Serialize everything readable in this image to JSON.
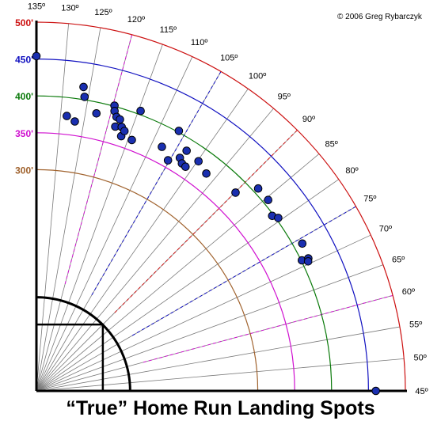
{
  "chart_data": {
    "type": "scatter",
    "title": "“True” Home Run Landing Spots",
    "credit": "© 2006 Greg Rybarczyk",
    "coordinate_system": "polar",
    "radius_unit": "ft",
    "distance_rings": [
      {
        "label": "300'",
        "value": 300,
        "color": "#a0622d"
      },
      {
        "label": "350'",
        "value": 350,
        "color": "#d010d0"
      },
      {
        "label": "400'",
        "value": 400,
        "color": "#0b7a0b"
      },
      {
        "label": "450'",
        "value": 450,
        "color": "#1010c0"
      },
      {
        "label": "500'",
        "value": 500,
        "color": "#cc1010"
      }
    ],
    "angle_ticks": [
      {
        "label": "135º",
        "value": 135
      },
      {
        "label": "130º",
        "value": 130
      },
      {
        "label": "125º",
        "value": 125
      },
      {
        "label": "120º",
        "value": 120
      },
      {
        "label": "115º",
        "value": 115
      },
      {
        "label": "110º",
        "value": 110
      },
      {
        "label": "105º",
        "value": 105
      },
      {
        "label": "100º",
        "value": 100
      },
      {
        "label": "95º",
        "value": 95
      },
      {
        "label": "90º",
        "value": 90
      },
      {
        "label": "85º",
        "value": 85
      },
      {
        "label": "80º",
        "value": 80
      },
      {
        "label": "75º",
        "value": 75
      },
      {
        "label": "70º",
        "value": 70
      },
      {
        "label": "65º",
        "value": 65
      },
      {
        "label": "60º",
        "value": 60
      },
      {
        "label": "55º",
        "value": 55
      },
      {
        "label": "50º",
        "value": 50
      },
      {
        "label": "45º",
        "value": 45
      }
    ],
    "dashed_angles": [
      {
        "value": 120,
        "color": "#d010d0"
      },
      {
        "value": 105,
        "color": "#1010c0"
      },
      {
        "value": 90,
        "color": "#cc1010"
      },
      {
        "value": 75,
        "color": "#1010c0"
      },
      {
        "value": 60,
        "color": "#d010d0"
      }
    ],
    "points": [
      {
        "distance": 454,
        "angle": 135.0
      },
      {
        "distance": 460,
        "angle": 45.0
      },
      {
        "distance": 375,
        "angle": 128.7
      },
      {
        "distance": 369,
        "angle": 126.9
      },
      {
        "distance": 417,
        "angle": 126.2
      },
      {
        "distance": 404,
        "angle": 125.7
      },
      {
        "distance": 385,
        "angle": 122.8
      },
      {
        "distance": 401,
        "angle": 119.7
      },
      {
        "distance": 394,
        "angle": 119.4
      },
      {
        "distance": 387,
        "angle": 118.7
      },
      {
        "distance": 374,
        "angle": 118.4
      },
      {
        "distance": 385,
        "angle": 117.9
      },
      {
        "distance": 376,
        "angle": 117.1
      },
      {
        "distance": 364,
        "angle": 116.6
      },
      {
        "distance": 372,
        "angle": 116.3
      },
      {
        "distance": 364,
        "angle": 114.2
      },
      {
        "distance": 405,
        "angle": 114.6
      },
      {
        "distance": 372,
        "angle": 107.8
      },
      {
        "distance": 402,
        "angle": 106.3
      },
      {
        "distance": 360,
        "angle": 105.3
      },
      {
        "distance": 371,
        "angle": 103.4
      },
      {
        "distance": 384,
        "angle": 103.0
      },
      {
        "distance": 366,
        "angle": 102.4
      },
      {
        "distance": 365,
        "angle": 101.4
      },
      {
        "distance": 381,
        "angle": 99.8
      },
      {
        "distance": 374,
        "angle": 97.0
      },
      {
        "distance": 381,
        "angle": 89.9
      },
      {
        "distance": 407,
        "angle": 87.4
      },
      {
        "distance": 407,
        "angle": 84.5
      },
      {
        "distance": 398,
        "angle": 81.6
      },
      {
        "distance": 403,
        "angle": 80.6
      },
      {
        "distance": 412,
        "angle": 74.0
      },
      {
        "distance": 401,
        "angle": 71.2
      },
      {
        "distance": 410,
        "angle": 71.0
      },
      {
        "distance": 408,
        "angle": 70.5
      }
    ]
  }
}
